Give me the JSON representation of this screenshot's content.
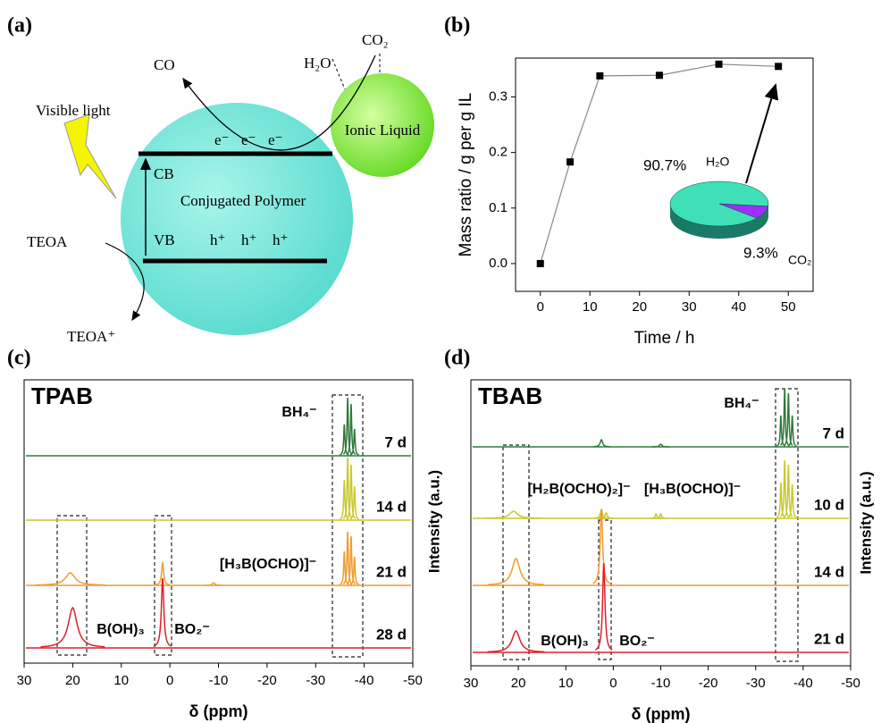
{
  "diagram": {
    "panel_label": "(a)",
    "light": "Visible light",
    "product": "CO",
    "water": "H₂O",
    "co2": "CO₂",
    "ionic_liquid": "Ionic Liquid",
    "electrons": [
      "e⁻",
      "e⁻",
      "e⁻"
    ],
    "cb": "CB",
    "polymer": "Conjugated Polymer",
    "vb": "VB",
    "holes": [
      "h⁺",
      "h⁺",
      "h⁺"
    ],
    "donor": "TEOA",
    "donor_ox": "TEOA⁺"
  },
  "chart_data": [
    {
      "type": "line",
      "panel_label": "(b)",
      "xlabel": "Time / h",
      "ylabel": "Mass ratio / g per g IL",
      "color": "#888888",
      "marker_color": "#000000",
      "x": [
        0,
        6,
        12,
        24,
        36,
        48
      ],
      "values": [
        0,
        0.183,
        0.338,
        0.339,
        0.359,
        0.355
      ],
      "xlim": [
        -5,
        55
      ],
      "ylim": [
        -0.05,
        0.37
      ],
      "xticks": [
        0,
        10,
        20,
        30,
        40,
        50
      ],
      "yticks": [
        {
          "value": 0,
          "label": "0.0"
        },
        0.1,
        0.2,
        0.3
      ]
    },
    {
      "type": "pie",
      "categories": [
        "H₂O",
        "CO₂"
      ],
      "values": [
        90.7,
        9.3
      ],
      "value_labels": [
        "90.7%",
        "9.3%"
      ],
      "colors": [
        "#3fe0b8",
        "#9b30ff"
      ]
    },
    {
      "type": "spectrum",
      "panel_label": "(c)",
      "title": "TPAB",
      "xlabel": "δ (ppm)",
      "ylabel_right": "Intensity (a.u.)",
      "xlim": [
        30,
        -50
      ],
      "xticks": [
        30,
        20,
        10,
        0,
        -10,
        -20,
        -30,
        -40,
        -50
      ],
      "annotations": [
        "BH₄⁻",
        "[H₃B(OCHO)]⁻",
        "B(OH)₃",
        "BO₂⁻"
      ],
      "series": [
        {
          "name": "7 d",
          "color": "#2f7a3a",
          "x": [
            -35.9,
            -36.6,
            -37.3,
            -38.0
          ],
          "values": [
            35,
            65,
            58,
            30
          ],
          "widths": [
            0.15,
            0.15,
            0.15,
            0.15
          ]
        },
        {
          "name": "14 d",
          "color": "#c9c92a",
          "x": [
            -35.9,
            -36.6,
            -37.3,
            -38.0
          ],
          "values": [
            45,
            70,
            62,
            38
          ],
          "widths": [
            0.15,
            0.15,
            0.15,
            0.15
          ]
        },
        {
          "name": "21 d",
          "color": "#f29b2d",
          "x": [
            20.5,
            1.5,
            -9,
            -35.9,
            -36.6,
            -37.3,
            -38.0
          ],
          "values": [
            14,
            25,
            3,
            38,
            60,
            55,
            32
          ],
          "widths": [
            1.2,
            0.25,
            0.3,
            0.15,
            0.15,
            0.15,
            0.15
          ]
        },
        {
          "name": "28 d",
          "color": "#e0202a",
          "x": [
            20,
            1.5
          ],
          "values": [
            45,
            78
          ],
          "widths": [
            1.1,
            0.3
          ]
        }
      ]
    },
    {
      "type": "spectrum",
      "panel_label": "(d)",
      "title": "TBAB",
      "xlabel": "δ (ppm)",
      "ylabel_right": "Intensity (a.u.)",
      "xlim": [
        30,
        -50
      ],
      "xticks": [
        30,
        20,
        10,
        0,
        -10,
        -20,
        -30,
        -40,
        -50
      ],
      "annotations": [
        "BH₄⁻",
        "[H₂B(OCHO)₂]⁻",
        "[H₃B(OCHO)]⁻",
        "B(OH)₃",
        "BO₂⁻"
      ],
      "series": [
        {
          "name": "7 d",
          "color": "#2f7a3a",
          "x": [
            2.5,
            -10,
            -35.3,
            -36.1,
            -36.9,
            -37.7
          ],
          "values": [
            8,
            3,
            35,
            65,
            60,
            35
          ],
          "widths": [
            0.3,
            0.3,
            0.15,
            0.15,
            0.15,
            0.15
          ]
        },
        {
          "name": "10 d",
          "color": "#c9c92a",
          "x": [
            21,
            2.5,
            1.5,
            -9,
            -10,
            -35.3,
            -36.1,
            -36.9,
            -37.7
          ],
          "values": [
            8,
            10,
            6,
            5,
            5,
            40,
            65,
            60,
            38
          ],
          "widths": [
            1,
            0.25,
            0.25,
            0.2,
            0.2,
            0.15,
            0.15,
            0.15,
            0.15
          ]
        },
        {
          "name": "14 d",
          "color": "#f29b2d",
          "x": [
            20.5,
            2.5
          ],
          "values": [
            30,
            85
          ],
          "widths": [
            1,
            0.3
          ]
        },
        {
          "name": "21 d",
          "color": "#e0202a",
          "x": [
            20.5,
            2
          ],
          "values": [
            24,
            100
          ],
          "widths": [
            1,
            0.3
          ]
        }
      ]
    }
  ]
}
